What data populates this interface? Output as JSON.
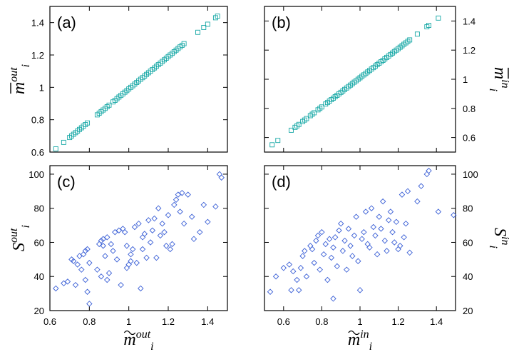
{
  "colors": {
    "square": "#17a8a6",
    "diamond": "#3a5fd6",
    "frame": "#000000"
  },
  "chart_data": [
    {
      "panel": "(a)",
      "type": "scatter",
      "marker": "square",
      "xlim": [
        0.6,
        1.5
      ],
      "ylim": [
        0.6,
        1.5
      ],
      "yticks": [
        "0.6",
        "0.8",
        "1",
        "1.2",
        "1.4"
      ],
      "ytick_values": [
        0.6,
        0.8,
        1.0,
        1.2,
        1.4
      ],
      "yaxis": "left",
      "ylabel": {
        "base": "m",
        "sub": "i",
        "sup": "out",
        "accent": "bar"
      },
      "points": [
        [
          0.63,
          0.62
        ],
        [
          0.67,
          0.66
        ],
        [
          0.7,
          0.69
        ],
        [
          0.71,
          0.7
        ],
        [
          0.72,
          0.71
        ],
        [
          0.73,
          0.72
        ],
        [
          0.74,
          0.73
        ],
        [
          0.75,
          0.74
        ],
        [
          0.76,
          0.75
        ],
        [
          0.77,
          0.76
        ],
        [
          0.78,
          0.77
        ],
        [
          0.79,
          0.78
        ],
        [
          0.84,
          0.83
        ],
        [
          0.85,
          0.84
        ],
        [
          0.86,
          0.85
        ],
        [
          0.87,
          0.86
        ],
        [
          0.88,
          0.87
        ],
        [
          0.89,
          0.88
        ],
        [
          0.9,
          0.89
        ],
        [
          0.92,
          0.91
        ],
        [
          0.93,
          0.92
        ],
        [
          0.94,
          0.93
        ],
        [
          0.95,
          0.94
        ],
        [
          0.96,
          0.95
        ],
        [
          0.97,
          0.96
        ],
        [
          0.98,
          0.97
        ],
        [
          0.99,
          0.98
        ],
        [
          1.0,
          0.99
        ],
        [
          1.01,
          1.0
        ],
        [
          1.02,
          1.01
        ],
        [
          1.03,
          1.02
        ],
        [
          1.04,
          1.03
        ],
        [
          1.05,
          1.04
        ],
        [
          1.06,
          1.05
        ],
        [
          1.07,
          1.06
        ],
        [
          1.08,
          1.07
        ],
        [
          1.09,
          1.08
        ],
        [
          1.1,
          1.09
        ],
        [
          1.11,
          1.1
        ],
        [
          1.12,
          1.11
        ],
        [
          1.13,
          1.12
        ],
        [
          1.14,
          1.13
        ],
        [
          1.15,
          1.14
        ],
        [
          1.16,
          1.15
        ],
        [
          1.17,
          1.16
        ],
        [
          1.18,
          1.17
        ],
        [
          1.19,
          1.18
        ],
        [
          1.2,
          1.19
        ],
        [
          1.21,
          1.2
        ],
        [
          1.22,
          1.21
        ],
        [
          1.23,
          1.22
        ],
        [
          1.24,
          1.23
        ],
        [
          1.25,
          1.24
        ],
        [
          1.26,
          1.25
        ],
        [
          1.27,
          1.26
        ],
        [
          1.28,
          1.27
        ],
        [
          1.35,
          1.34
        ],
        [
          1.38,
          1.37
        ],
        [
          1.4,
          1.39
        ],
        [
          1.44,
          1.43
        ],
        [
          1.45,
          1.44
        ]
      ]
    },
    {
      "panel": "(b)",
      "type": "scatter",
      "marker": "square",
      "xlim": [
        0.5,
        1.5
      ],
      "ylim": [
        0.5,
        1.5
      ],
      "yticks": [
        "0.6",
        "0.8",
        "1",
        "1.2",
        "1.4"
      ],
      "ytick_values": [
        0.6,
        0.8,
        1.0,
        1.2,
        1.4
      ],
      "yaxis": "right",
      "ylabel": {
        "base": "m",
        "sub": "i",
        "sup": "in",
        "accent": "bar"
      },
      "points": [
        [
          0.54,
          0.55
        ],
        [
          0.57,
          0.58
        ],
        [
          0.64,
          0.65
        ],
        [
          0.66,
          0.67
        ],
        [
          0.67,
          0.68
        ],
        [
          0.68,
          0.69
        ],
        [
          0.7,
          0.71
        ],
        [
          0.71,
          0.72
        ],
        [
          0.72,
          0.73
        ],
        [
          0.74,
          0.75
        ],
        [
          0.75,
          0.76
        ],
        [
          0.76,
          0.77
        ],
        [
          0.78,
          0.79
        ],
        [
          0.79,
          0.8
        ],
        [
          0.8,
          0.81
        ],
        [
          0.82,
          0.83
        ],
        [
          0.83,
          0.84
        ],
        [
          0.84,
          0.85
        ],
        [
          0.85,
          0.86
        ],
        [
          0.86,
          0.87
        ],
        [
          0.87,
          0.88
        ],
        [
          0.88,
          0.89
        ],
        [
          0.89,
          0.9
        ],
        [
          0.9,
          0.91
        ],
        [
          0.91,
          0.92
        ],
        [
          0.92,
          0.93
        ],
        [
          0.93,
          0.94
        ],
        [
          0.94,
          0.95
        ],
        [
          0.95,
          0.96
        ],
        [
          0.96,
          0.97
        ],
        [
          0.97,
          0.98
        ],
        [
          0.98,
          0.99
        ],
        [
          0.99,
          1.0
        ],
        [
          1.0,
          1.01
        ],
        [
          1.01,
          1.02
        ],
        [
          1.02,
          1.03
        ],
        [
          1.03,
          1.04
        ],
        [
          1.04,
          1.05
        ],
        [
          1.05,
          1.06
        ],
        [
          1.06,
          1.07
        ],
        [
          1.07,
          1.08
        ],
        [
          1.08,
          1.09
        ],
        [
          1.09,
          1.1
        ],
        [
          1.1,
          1.11
        ],
        [
          1.11,
          1.12
        ],
        [
          1.12,
          1.13
        ],
        [
          1.13,
          1.14
        ],
        [
          1.14,
          1.15
        ],
        [
          1.15,
          1.16
        ],
        [
          1.16,
          1.17
        ],
        [
          1.17,
          1.18
        ],
        [
          1.18,
          1.19
        ],
        [
          1.19,
          1.2
        ],
        [
          1.2,
          1.21
        ],
        [
          1.21,
          1.22
        ],
        [
          1.22,
          1.23
        ],
        [
          1.23,
          1.24
        ],
        [
          1.24,
          1.25
        ],
        [
          1.25,
          1.26
        ],
        [
          1.26,
          1.27
        ],
        [
          1.3,
          1.31
        ],
        [
          1.35,
          1.36
        ],
        [
          1.36,
          1.37
        ],
        [
          1.41,
          1.42
        ]
      ]
    },
    {
      "panel": "(c)",
      "type": "scatter",
      "marker": "diamond",
      "xlim": [
        0.6,
        1.5
      ],
      "ylim": [
        20,
        105
      ],
      "xticks": [
        "0.6",
        "0.8",
        "1",
        "1.2",
        "1.4"
      ],
      "xtick_values": [
        0.6,
        0.8,
        1.0,
        1.2,
        1.4
      ],
      "yticks": [
        "20",
        "40",
        "60",
        "80",
        "100"
      ],
      "ytick_values": [
        20,
        40,
        60,
        80,
        100
      ],
      "yaxis": "left",
      "ylabel": {
        "base": "S",
        "sub": "i",
        "sup": "out"
      },
      "xlabel": {
        "base": "m",
        "sub": "i",
        "sup": "out",
        "accent": "tilde"
      },
      "points": [
        [
          0.63,
          33
        ],
        [
          0.67,
          36
        ],
        [
          0.69,
          37
        ],
        [
          0.71,
          50
        ],
        [
          0.72,
          49
        ],
        [
          0.73,
          35
        ],
        [
          0.74,
          47
        ],
        [
          0.75,
          52
        ],
        [
          0.76,
          44
        ],
        [
          0.77,
          53
        ],
        [
          0.78,
          38
        ],
        [
          0.78,
          55
        ],
        [
          0.79,
          56
        ],
        [
          0.8,
          48
        ],
        [
          0.8,
          24
        ],
        [
          0.79,
          31
        ],
        [
          0.84,
          44
        ],
        [
          0.85,
          59
        ],
        [
          0.86,
          61
        ],
        [
          0.86,
          40
        ],
        [
          0.87,
          62
        ],
        [
          0.87,
          58
        ],
        [
          0.88,
          52
        ],
        [
          0.89,
          38
        ],
        [
          0.89,
          63
        ],
        [
          0.9,
          42
        ],
        [
          0.91,
          59
        ],
        [
          0.92,
          55
        ],
        [
          0.93,
          66
        ],
        [
          0.94,
          50
        ],
        [
          0.95,
          67
        ],
        [
          0.96,
          35
        ],
        [
          0.97,
          68
        ],
        [
          0.98,
          66
        ],
        [
          0.99,
          58
        ],
        [
          0.99,
          45
        ],
        [
          1.0,
          47
        ],
        [
          1.01,
          49
        ],
        [
          1.01,
          53
        ],
        [
          1.02,
          56
        ],
        [
          1.03,
          69
        ],
        [
          1.04,
          48
        ],
        [
          1.05,
          71
        ],
        [
          1.06,
          33
        ],
        [
          1.07,
          63
        ],
        [
          1.07,
          56
        ],
        [
          1.08,
          65
        ],
        [
          1.09,
          51
        ],
        [
          1.1,
          73
        ],
        [
          1.11,
          60
        ],
        [
          1.12,
          67
        ],
        [
          1.13,
          74
        ],
        [
          1.14,
          51
        ],
        [
          1.15,
          80
        ],
        [
          1.16,
          64
        ],
        [
          1.17,
          71
        ],
        [
          1.18,
          66
        ],
        [
          1.19,
          58
        ],
        [
          1.2,
          76
        ],
        [
          1.21,
          56
        ],
        [
          1.22,
          59
        ],
        [
          1.23,
          82
        ],
        [
          1.24,
          85
        ],
        [
          1.25,
          88
        ],
        [
          1.26,
          78
        ],
        [
          1.27,
          89
        ],
        [
          1.28,
          71
        ],
        [
          1.3,
          88
        ],
        [
          1.32,
          75
        ],
        [
          1.33,
          62
        ],
        [
          1.36,
          66
        ],
        [
          1.38,
          82
        ],
        [
          1.4,
          72
        ],
        [
          1.44,
          81
        ],
        [
          1.46,
          100
        ],
        [
          1.47,
          98
        ]
      ]
    },
    {
      "panel": "(d)",
      "type": "scatter",
      "marker": "diamond",
      "xlim": [
        0.5,
        1.5
      ],
      "ylim": [
        20,
        105
      ],
      "xticks": [
        "0.6",
        "0.8",
        "1",
        "1.2",
        "1.4"
      ],
      "xtick_values": [
        0.6,
        0.8,
        1.0,
        1.2,
        1.4
      ],
      "yticks": [
        "20",
        "40",
        "60",
        "80",
        "100"
      ],
      "ytick_values": [
        20,
        40,
        60,
        80,
        100
      ],
      "yaxis": "right",
      "ylabel": {
        "base": "S",
        "sub": "i",
        "sup": "in"
      },
      "xlabel": {
        "base": "m",
        "sub": "i",
        "sup": "in",
        "accent": "tilde"
      },
      "points": [
        [
          0.53,
          31
        ],
        [
          0.56,
          40
        ],
        [
          0.6,
          45
        ],
        [
          0.63,
          47
        ],
        [
          0.64,
          32
        ],
        [
          0.65,
          43
        ],
        [
          0.67,
          38
        ],
        [
          0.68,
          32
        ],
        [
          0.69,
          45
        ],
        [
          0.7,
          52
        ],
        [
          0.71,
          55
        ],
        [
          0.72,
          40
        ],
        [
          0.74,
          58
        ],
        [
          0.75,
          56
        ],
        [
          0.76,
          48
        ],
        [
          0.77,
          61
        ],
        [
          0.78,
          64
        ],
        [
          0.79,
          44
        ],
        [
          0.8,
          66
        ],
        [
          0.81,
          53
        ],
        [
          0.82,
          59
        ],
        [
          0.83,
          38
        ],
        [
          0.84,
          62
        ],
        [
          0.85,
          51
        ],
        [
          0.86,
          27
        ],
        [
          0.86,
          57
        ],
        [
          0.87,
          63
        ],
        [
          0.88,
          46
        ],
        [
          0.89,
          67
        ],
        [
          0.9,
          71
        ],
        [
          0.91,
          55
        ],
        [
          0.92,
          61
        ],
        [
          0.93,
          44
        ],
        [
          0.94,
          68
        ],
        [
          0.95,
          58
        ],
        [
          0.96,
          52
        ],
        [
          0.97,
          64
        ],
        [
          0.98,
          75
        ],
        [
          0.99,
          49
        ],
        [
          1.0,
          32
        ],
        [
          1.01,
          62
        ],
        [
          1.02,
          66
        ],
        [
          1.03,
          78
        ],
        [
          1.04,
          59
        ],
        [
          1.05,
          57
        ],
        [
          1.06,
          80
        ],
        [
          1.07,
          69
        ],
        [
          1.08,
          64
        ],
        [
          1.09,
          53
        ],
        [
          1.1,
          75
        ],
        [
          1.11,
          68
        ],
        [
          1.12,
          84
        ],
        [
          1.13,
          61
        ],
        [
          1.14,
          55
        ],
        [
          1.15,
          73
        ],
        [
          1.16,
          78
        ],
        [
          1.17,
          66
        ],
        [
          1.18,
          60
        ],
        [
          1.19,
          72
        ],
        [
          1.2,
          56
        ],
        [
          1.21,
          58
        ],
        [
          1.22,
          88
        ],
        [
          1.23,
          63
        ],
        [
          1.24,
          71
        ],
        [
          1.25,
          90
        ],
        [
          1.26,
          54
        ],
        [
          1.3,
          84
        ],
        [
          1.32,
          93
        ],
        [
          1.35,
          100
        ],
        [
          1.36,
          102
        ],
        [
          1.41,
          78
        ],
        [
          1.49,
          76
        ]
      ]
    }
  ]
}
